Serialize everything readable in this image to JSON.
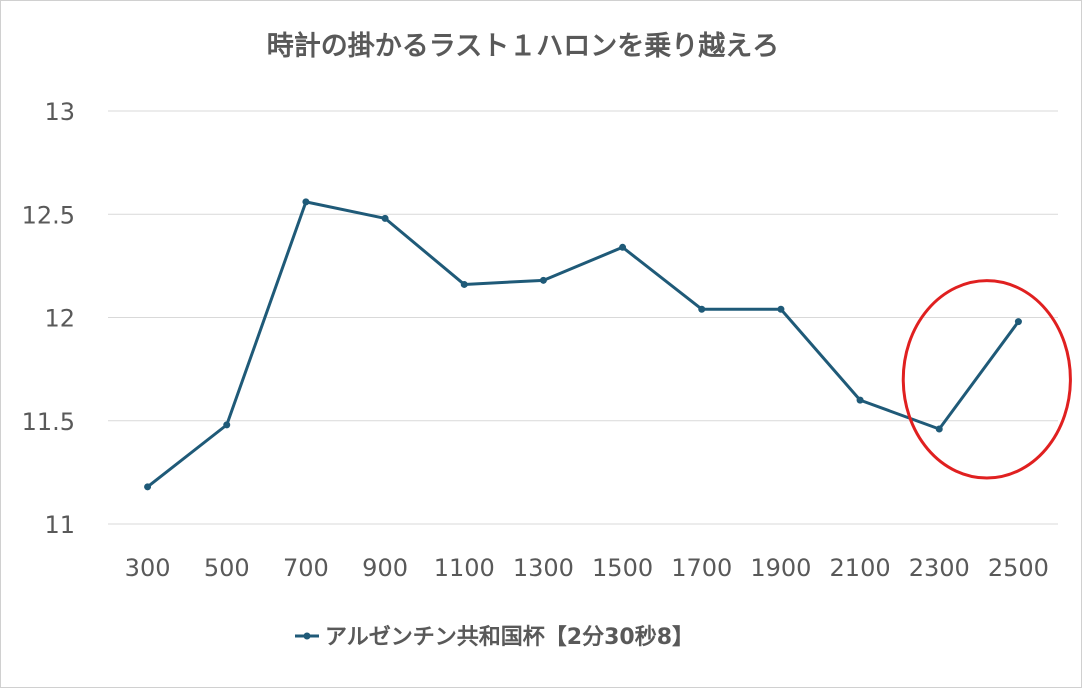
{
  "chart_data": {
    "type": "line",
    "title": "時計の掛かるラスト１ハロンを乗り越えろ",
    "xlabel": "",
    "ylabel": "",
    "categories": [
      "300",
      "500",
      "700",
      "900",
      "1100",
      "1300",
      "1500",
      "1700",
      "1900",
      "2100",
      "2300",
      "2500"
    ],
    "series": [
      {
        "name": "アルゼンチン共和国杯【2分30秒8】",
        "color": "#1f5a78",
        "values": [
          11.18,
          11.48,
          12.56,
          12.48,
          12.16,
          12.18,
          12.34,
          12.04,
          12.04,
          11.6,
          11.46,
          11.98
        ]
      }
    ],
    "ylim": [
      11,
      13
    ],
    "yticks": [
      "11",
      "11.5",
      "12",
      "12.5",
      "13"
    ],
    "grid": true,
    "legend_position": "bottom",
    "annotation": {
      "type": "ellipse",
      "color": "#e02020",
      "categories": [
        "2300",
        "2500"
      ]
    }
  }
}
